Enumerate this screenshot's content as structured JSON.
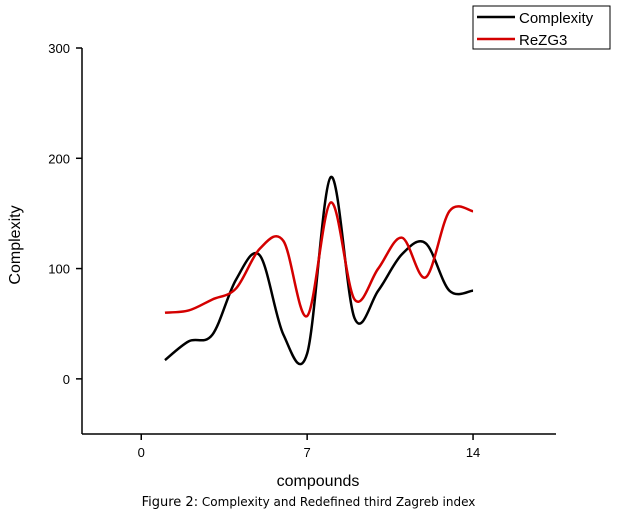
{
  "chart_data": {
    "type": "line",
    "xlabel": "compounds",
    "ylabel": "Complexity",
    "xlim": [
      -2.5,
      17.5
    ],
    "ylim": [
      -50,
      300
    ],
    "xticks": [
      0,
      7,
      14
    ],
    "yticks": [
      0,
      100,
      200,
      300
    ],
    "grid": false,
    "legend": "top-right",
    "series": [
      {
        "name": "Complexity",
        "color": "#000000",
        "x": [
          1,
          2,
          3,
          4,
          5,
          6,
          7,
          8,
          9,
          10,
          11,
          12,
          13,
          14
        ],
        "y": [
          17,
          34,
          40,
          90,
          112,
          40,
          23,
          183,
          55,
          80,
          113,
          123,
          80,
          80
        ]
      },
      {
        "name": "ReZG3",
        "color": "#d40000",
        "x": [
          1,
          2,
          3,
          4,
          5,
          6,
          7,
          8,
          9,
          10,
          11,
          12,
          13,
          14
        ],
        "y": [
          60,
          62,
          72,
          82,
          118,
          125,
          57,
          160,
          72,
          100,
          128,
          92,
          152,
          152
        ]
      }
    ]
  },
  "caption": {
    "figure_label": "Figure 2:",
    "text": "Complexity and Redefined third Zagreb index"
  }
}
